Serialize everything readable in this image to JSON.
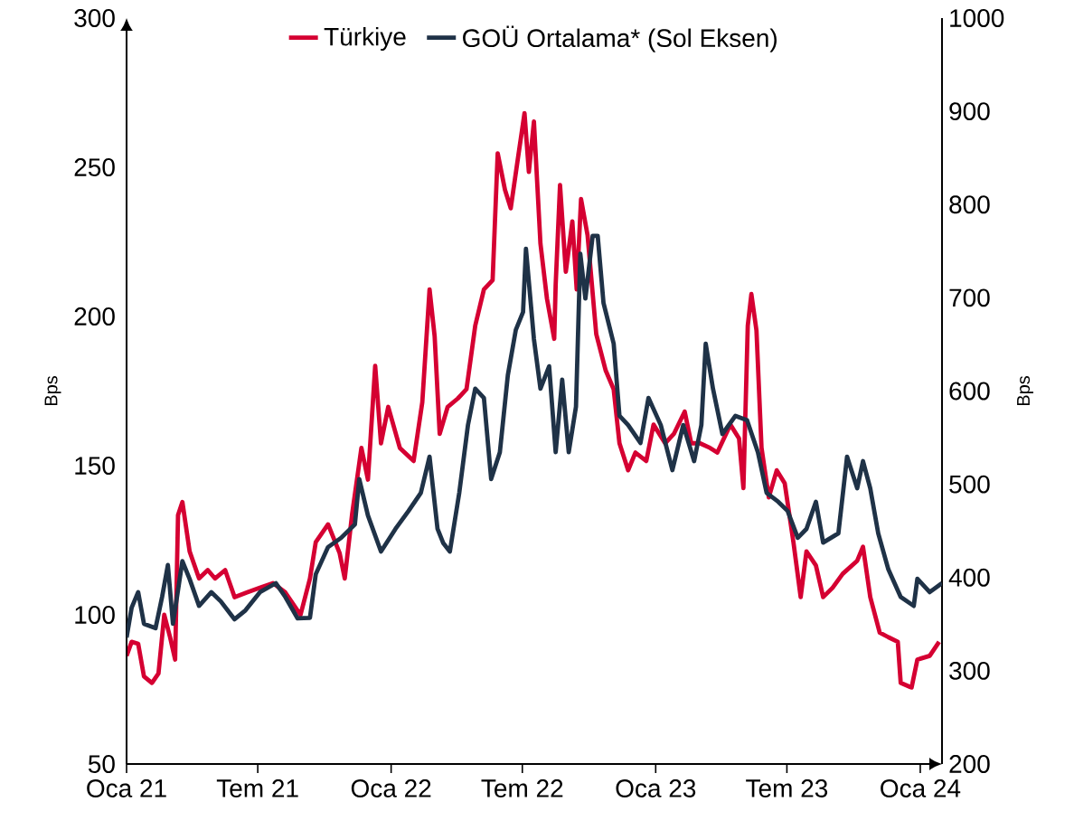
{
  "chart_data": {
    "type": "line",
    "ylabel": "Bps",
    "y2label": "Bps",
    "legend": "top",
    "xlim": [
      "2021-01-01",
      "2024-01-31"
    ],
    "xticks": [
      {
        "value": "2021-01-01",
        "label": "Oca 21"
      },
      {
        "value": "2021-07-01",
        "label": "Tem 21"
      },
      {
        "value": "2022-01-01",
        "label": "Oca 22"
      },
      {
        "value": "2022-07-01",
        "label": "Tem 22"
      },
      {
        "value": "2023-01-01",
        "label": "Oca 23"
      },
      {
        "value": "2023-07-01",
        "label": "Tem 23"
      },
      {
        "value": "2024-01-01",
        "label": "Oca 24"
      }
    ],
    "ylim": [
      50,
      300
    ],
    "yticks": [
      50,
      100,
      150,
      200,
      250,
      300
    ],
    "y2lim": [
      200,
      1000
    ],
    "y2ticks": [
      200,
      300,
      400,
      500,
      600,
      700,
      800,
      900,
      1000
    ],
    "series": [
      {
        "name": "Türkiye",
        "color": "#d50032",
        "axis": "y2",
        "x": [
          "2021-01-01",
          "2021-01-08",
          "2021-01-17",
          "2021-01-25",
          "2021-02-05",
          "2021-02-14",
          "2021-02-22",
          "2021-03-02",
          "2021-03-09",
          "2021-03-13",
          "2021-03-19",
          "2021-03-29",
          "2021-04-11",
          "2021-04-23",
          "2021-05-03",
          "2021-05-17",
          "2021-05-30",
          "2021-06-16",
          "2021-07-04",
          "2021-07-22",
          "2021-08-08",
          "2021-08-29",
          "2021-09-11",
          "2021-09-19",
          "2021-10-06",
          "2021-10-22",
          "2021-10-29",
          "2021-11-08",
          "2021-11-21",
          "2021-11-30",
          "2021-12-10",
          "2021-12-18",
          "2021-12-28",
          "2022-01-13",
          "2022-02-01",
          "2022-02-13",
          "2022-02-23",
          "2022-03-02",
          "2022-03-09",
          "2022-03-20",
          "2022-04-03",
          "2022-04-15",
          "2022-04-27",
          "2022-05-09",
          "2022-05-21",
          "2022-05-28",
          "2022-06-07",
          "2022-06-15",
          "2022-06-25",
          "2022-07-04",
          "2022-07-10",
          "2022-07-17",
          "2022-07-26",
          "2022-08-04",
          "2022-08-14",
          "2022-08-16",
          "2022-08-22",
          "2022-08-30",
          "2022-09-08",
          "2022-09-14",
          "2022-09-20",
          "2022-09-29",
          "2022-10-11",
          "2022-10-24",
          "2022-11-04",
          "2022-11-12",
          "2022-11-24",
          "2022-12-04",
          "2022-12-19",
          "2022-12-29",
          "2023-01-14",
          "2023-01-26",
          "2023-02-10",
          "2023-02-19",
          "2023-03-03",
          "2023-03-17",
          "2023-03-27",
          "2023-04-14",
          "2023-04-26",
          "2023-05-02",
          "2023-05-08",
          "2023-05-13",
          "2023-05-20",
          "2023-05-27",
          "2023-06-06",
          "2023-06-17",
          "2023-06-28",
          "2023-07-10",
          "2023-07-20",
          "2023-07-28",
          "2023-08-10",
          "2023-08-20",
          "2023-09-02",
          "2023-09-16",
          "2023-10-06",
          "2023-10-14",
          "2023-10-24",
          "2023-11-06",
          "2023-11-18",
          "2023-12-01",
          "2023-12-05",
          "2023-12-20",
          "2023-12-28",
          "2024-01-14",
          "2024-01-27"
        ],
        "values": [
          316,
          331,
          329,
          294,
          287,
          297,
          360,
          336,
          312,
          467,
          481,
          428,
          399,
          408,
          399,
          408,
          379,
          384,
          389,
          394,
          384,
          360,
          399,
          438,
          457,
          426,
          399,
          467,
          539,
          505,
          627,
          544,
          583,
          539,
          525,
          588,
          709,
          659,
          554,
          583,
          592,
          602,
          670,
          709,
          719,
          855,
          816,
          796,
          850,
          898,
          835,
          889,
          758,
          699,
          656,
          714,
          821,
          728,
          782,
          709,
          806,
          767,
          661,
          622,
          602,
          544,
          515,
          534,
          525,
          564,
          544,
          554,
          578,
          544,
          544,
          539,
          534,
          564,
          549,
          496,
          670,
          704,
          665,
          539,
          486,
          515,
          501,
          438,
          379,
          428,
          413,
          379,
          389,
          404,
          418,
          433,
          379,
          341,
          336,
          331,
          287,
          282,
          312,
          316,
          331
        ]
      },
      {
        "name": "GOÜ Ortalama* (Sol Eksen)",
        "color": "#1f3247",
        "axis": "y",
        "x": [
          "2021-01-01",
          "2021-01-08",
          "2021-01-17",
          "2021-01-25",
          "2021-02-10",
          "2021-02-19",
          "2021-02-27",
          "2021-03-06",
          "2021-03-19",
          "2021-03-29",
          "2021-04-11",
          "2021-04-28",
          "2021-05-11",
          "2021-05-30",
          "2021-06-14",
          "2021-07-04",
          "2021-07-26",
          "2021-08-08",
          "2021-08-25",
          "2021-09-11",
          "2021-09-19",
          "2021-10-06",
          "2021-10-24",
          "2021-11-12",
          "2021-11-18",
          "2021-11-30",
          "2021-12-18",
          "2022-01-07",
          "2022-01-25",
          "2022-02-11",
          "2022-02-23",
          "2022-03-06",
          "2022-03-14",
          "2022-03-23",
          "2022-04-05",
          "2022-04-17",
          "2022-04-27",
          "2022-05-09",
          "2022-05-19",
          "2022-05-31",
          "2022-06-11",
          "2022-06-22",
          "2022-07-02",
          "2022-07-06",
          "2022-07-17",
          "2022-07-26",
          "2022-08-07",
          "2022-08-16",
          "2022-08-25",
          "2022-09-03",
          "2022-09-13",
          "2022-09-19",
          "2022-09-26",
          "2022-10-06",
          "2022-10-13",
          "2022-10-21",
          "2022-11-04",
          "2022-11-12",
          "2022-11-24",
          "2022-12-11",
          "2022-12-22",
          "2023-01-08",
          "2023-01-24",
          "2023-02-08",
          "2023-02-23",
          "2023-03-05",
          "2023-03-11",
          "2023-03-21",
          "2023-04-03",
          "2023-04-21",
          "2023-05-07",
          "2023-05-22",
          "2023-06-03",
          "2023-06-19",
          "2023-07-02",
          "2023-07-16",
          "2023-07-28",
          "2023-08-10",
          "2023-08-20",
          "2023-09-10",
          "2023-09-22",
          "2023-10-06",
          "2023-10-14",
          "2023-10-24",
          "2023-11-04",
          "2023-11-18",
          "2023-12-05",
          "2023-12-23",
          "2023-12-28",
          "2024-01-14",
          "2024-01-31"
        ],
        "values": [
          92.4,
          102.4,
          107.6,
          97,
          95.5,
          106,
          116.7,
          97,
          118,
          112,
          103,
          107.6,
          104.5,
          98.5,
          101.5,
          107.6,
          110.6,
          106,
          98.8,
          99,
          113.6,
          122.7,
          125.8,
          130.3,
          145.5,
          133.3,
          121.2,
          128.8,
          134.8,
          140.9,
          153,
          128.8,
          124,
          121.2,
          140.9,
          163.6,
          175.8,
          172.7,
          145.5,
          154.5,
          180.3,
          195.5,
          201.5,
          222.7,
          192.4,
          175.8,
          183.3,
          154.5,
          178.8,
          154.5,
          169.7,
          221,
          206,
          227,
          227,
          204.5,
          190.9,
          166.7,
          163.6,
          157.6,
          172.7,
          163.6,
          148.5,
          163.6,
          151.5,
          163.6,
          190.9,
          175.8,
          160.6,
          166.7,
          165.2,
          154.5,
          140.9,
          137.9,
          134.8,
          125.8,
          128.8,
          137.9,
          124.2,
          127.3,
          153,
          142.4,
          151.5,
          142.4,
          127.3,
          115.2,
          106,
          103,
          112.1,
          107.6,
          110.6
        ]
      }
    ]
  }
}
